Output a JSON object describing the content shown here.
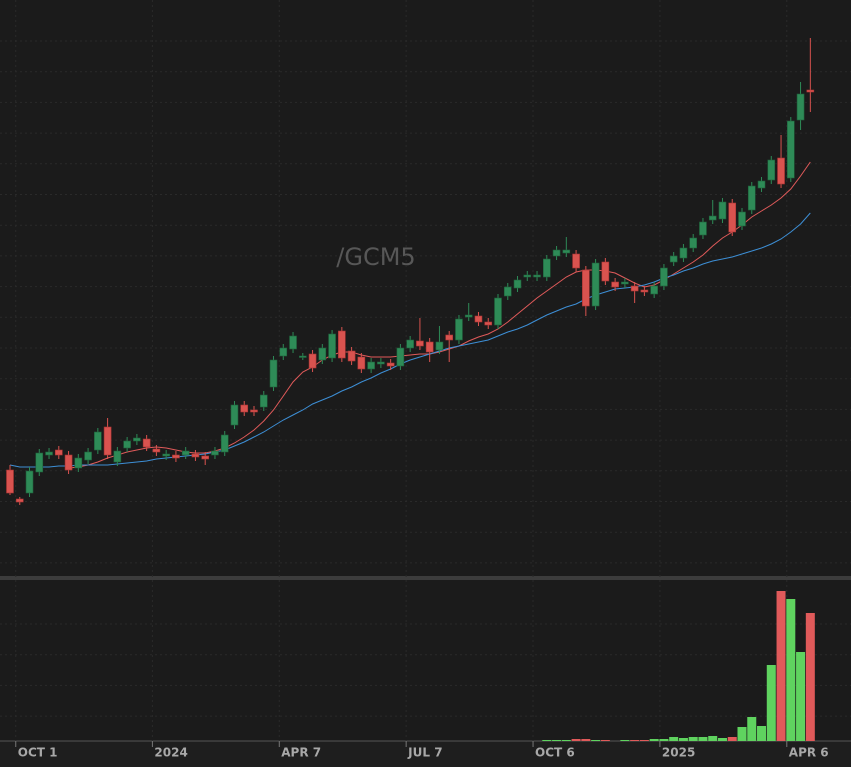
{
  "chart_data": {
    "type": "candlestick",
    "watermark": "/GCM5",
    "up_color": "#2e8b57",
    "down_color": "#d9534f",
    "categories": [
      null,
      "OCT 1",
      null,
      null,
      null,
      null,
      null,
      null,
      null,
      null,
      null,
      null,
      null,
      null,
      null,
      "2024",
      null,
      null,
      null,
      null,
      null,
      null,
      null,
      null,
      null,
      null,
      null,
      null,
      "APR 7",
      null,
      null,
      null,
      null,
      null,
      null,
      null,
      null,
      null,
      null,
      null,
      null,
      "JUL 7",
      null,
      null,
      null,
      null,
      null,
      null,
      null,
      null,
      null,
      null,
      null,
      null,
      "OCT 6",
      null,
      null,
      null,
      null,
      null,
      null,
      null,
      null,
      null,
      null,
      null,
      null,
      "2025",
      null,
      null,
      null,
      null,
      null,
      null,
      null,
      null,
      null,
      null,
      null,
      null,
      "APR 6",
      null,
      null
    ],
    "open": [
      2090,
      2003,
      2021,
      2084,
      2135,
      2150,
      2135,
      2096,
      2120,
      2150,
      2219,
      2114,
      2156,
      2177,
      2183,
      2153,
      2132,
      2135,
      2135,
      2138,
      2132,
      2135,
      2144,
      2225,
      2285,
      2270,
      2279,
      2339,
      2432,
      2453,
      2429,
      2438,
      2420,
      2426,
      2507,
      2447,
      2429,
      2393,
      2408,
      2411,
      2402,
      2456,
      2477,
      2474,
      2450,
      2495,
      2480,
      2549,
      2552,
      2534,
      2525,
      2612,
      2636,
      2669,
      2669,
      2669,
      2732,
      2741,
      2738,
      2690,
      2582,
      2714,
      2654,
      2648,
      2642,
      2630,
      2618,
      2642,
      2714,
      2726,
      2756,
      2795,
      2840,
      2843,
      2891,
      2822,
      2870,
      2936,
      2960,
      3026,
      2966,
      3140,
      3230
    ],
    "high": [
      2105,
      2009,
      2099,
      2153,
      2156,
      2162,
      2147,
      2138,
      2156,
      2216,
      2246,
      2159,
      2189,
      2198,
      2195,
      2165,
      2150,
      2147,
      2159,
      2150,
      2144,
      2159,
      2207,
      2297,
      2297,
      2282,
      2327,
      2432,
      2468,
      2504,
      2441,
      2450,
      2468,
      2510,
      2519,
      2459,
      2441,
      2426,
      2426,
      2423,
      2468,
      2492,
      2546,
      2486,
      2522,
      2507,
      2555,
      2591,
      2564,
      2546,
      2618,
      2651,
      2672,
      2687,
      2687,
      2735,
      2762,
      2789,
      2750,
      2702,
      2723,
      2726,
      2666,
      2666,
      2654,
      2642,
      2654,
      2708,
      2744,
      2768,
      2798,
      2846,
      2900,
      2906,
      2903,
      2876,
      2954,
      2969,
      3032,
      3095,
      3149,
      3254,
      3386
    ],
    "low": [
      2015,
      1985,
      2009,
      2072,
      2123,
      2123,
      2078,
      2084,
      2108,
      2138,
      2123,
      2102,
      2144,
      2165,
      2147,
      2132,
      2120,
      2114,
      2123,
      2117,
      2105,
      2123,
      2132,
      2213,
      2252,
      2252,
      2267,
      2327,
      2420,
      2441,
      2420,
      2384,
      2408,
      2414,
      2414,
      2405,
      2381,
      2381,
      2396,
      2390,
      2390,
      2444,
      2450,
      2414,
      2438,
      2414,
      2468,
      2537,
      2522,
      2513,
      2513,
      2600,
      2624,
      2657,
      2657,
      2657,
      2720,
      2729,
      2684,
      2552,
      2570,
      2645,
      2627,
      2636,
      2591,
      2612,
      2606,
      2630,
      2702,
      2714,
      2744,
      2783,
      2828,
      2831,
      2792,
      2810,
      2858,
      2924,
      2948,
      2936,
      2954,
      3110,
      3164
    ],
    "close": [
      2021,
      1994,
      2087,
      2141,
      2144,
      2135,
      2090,
      2126,
      2144,
      2204,
      2135,
      2147,
      2177,
      2186,
      2159,
      2144,
      2138,
      2126,
      2147,
      2129,
      2123,
      2147,
      2195,
      2285,
      2264,
      2264,
      2315,
      2420,
      2456,
      2492,
      2432,
      2396,
      2456,
      2498,
      2426,
      2417,
      2393,
      2414,
      2414,
      2402,
      2456,
      2480,
      2462,
      2444,
      2474,
      2480,
      2543,
      2555,
      2534,
      2525,
      2606,
      2639,
      2660,
      2675,
      2675,
      2723,
      2750,
      2750,
      2696,
      2582,
      2711,
      2657,
      2639,
      2654,
      2627,
      2624,
      2642,
      2696,
      2732,
      2756,
      2786,
      2834,
      2852,
      2894,
      2804,
      2864,
      2942,
      2957,
      3020,
      2948,
      3137,
      3218,
      3224
    ],
    "ylim": [
      1766,
      3500
    ],
    "overlays": [
      {
        "color": "#e05a5a",
        "values": [
          null,
          null,
          null,
          null,
          null,
          null,
          2096,
          2099,
          2105,
          2114,
          2126,
          2135,
          2144,
          2150,
          2156,
          2159,
          2156,
          2150,
          2144,
          2141,
          2141,
          2147,
          2156,
          2171,
          2189,
          2210,
          2237,
          2270,
          2312,
          2354,
          2384,
          2399,
          2420,
          2435,
          2444,
          2444,
          2435,
          2429,
          2429,
          2429,
          2432,
          2435,
          2438,
          2438,
          2444,
          2453,
          2462,
          2477,
          2489,
          2498,
          2513,
          2534,
          2558,
          2582,
          2606,
          2627,
          2648,
          2669,
          2684,
          2690,
          2690,
          2687,
          2681,
          2666,
          2651,
          2639,
          2645,
          2660,
          2678,
          2696,
          2714,
          2735,
          2762,
          2786,
          2804,
          2825,
          2849,
          2867,
          2885,
          2906,
          2933,
          2972,
          3014
        ]
      },
      {
        "color": "#3d8fd6",
        "values": [
          2105,
          2099,
          2099,
          2099,
          2099,
          2102,
          2102,
          2105,
          2105,
          2105,
          2105,
          2108,
          2111,
          2114,
          2117,
          2123,
          2126,
          2129,
          2132,
          2135,
          2138,
          2144,
          2150,
          2162,
          2174,
          2189,
          2204,
          2222,
          2240,
          2255,
          2270,
          2288,
          2300,
          2312,
          2327,
          2339,
          2354,
          2366,
          2381,
          2393,
          2408,
          2420,
          2429,
          2438,
          2447,
          2456,
          2462,
          2468,
          2474,
          2480,
          2492,
          2504,
          2513,
          2525,
          2540,
          2555,
          2567,
          2579,
          2588,
          2603,
          2615,
          2624,
          2633,
          2636,
          2639,
          2645,
          2654,
          2666,
          2675,
          2687,
          2696,
          2708,
          2717,
          2723,
          2729,
          2738,
          2747,
          2756,
          2768,
          2783,
          2804,
          2828,
          2861
        ]
      }
    ],
    "volume": {
      "up_color": "#5fd35f",
      "down_color": "#e05a5a",
      "ylim": [
        0,
        160
      ],
      "values": [
        0,
        0,
        0,
        0,
        0,
        0,
        0,
        0,
        0,
        0,
        0,
        0,
        0,
        0,
        0,
        0,
        0,
        0,
        0,
        0,
        0,
        0,
        0,
        0,
        0,
        0,
        0,
        0,
        0,
        0,
        0,
        0,
        0,
        0,
        0,
        0,
        0,
        0,
        0,
        0,
        0,
        0,
        0,
        0,
        0,
        0,
        0,
        0,
        0,
        0,
        0,
        0,
        0,
        0,
        0,
        1,
        1,
        1,
        2,
        2,
        1,
        1,
        0,
        1,
        1,
        1,
        2,
        2,
        4,
        3,
        4,
        4,
        5,
        3,
        4,
        14,
        24,
        15,
        76,
        150,
        142,
        89,
        128
      ]
    }
  }
}
